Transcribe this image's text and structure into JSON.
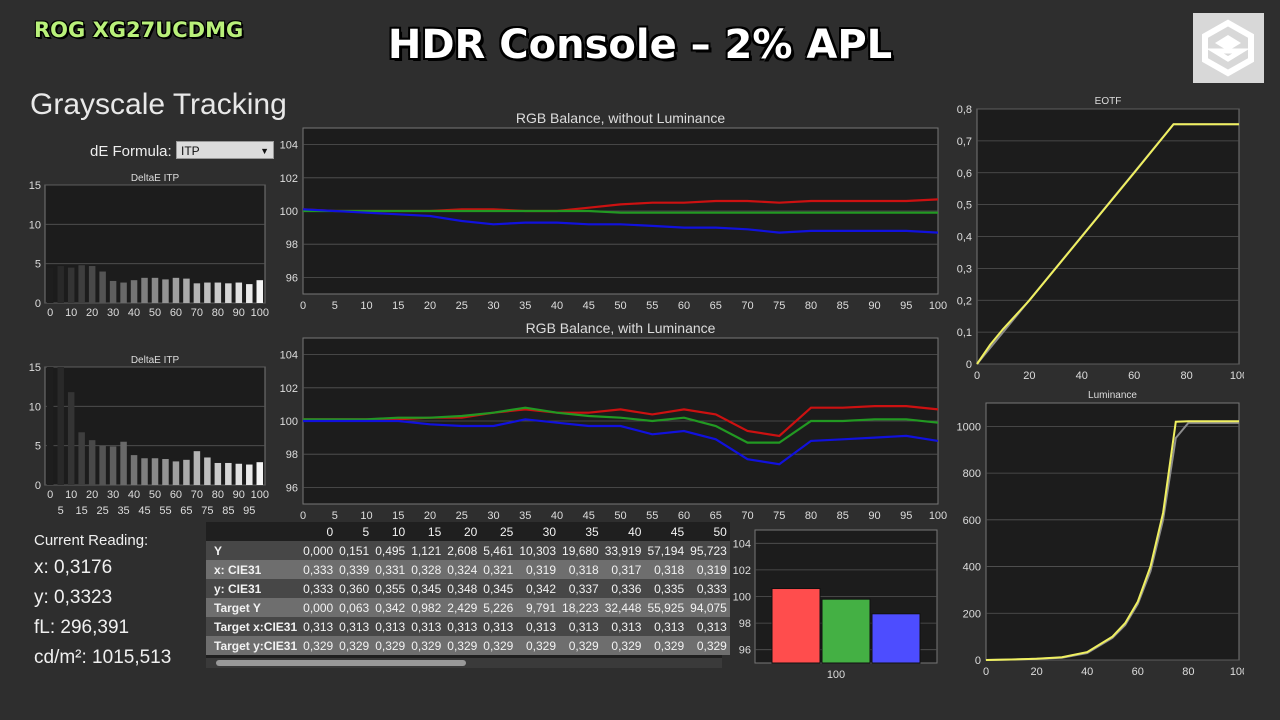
{
  "header": {
    "model": "ROG XG27UCDMG",
    "title": "HDR Console – 2% APL",
    "logo_icon": "cube-logo-icon",
    "section_title": "Grayscale Tracking"
  },
  "formula": {
    "label": "dE Formula:",
    "selected": "ITP"
  },
  "reading": {
    "title": "Current Reading:",
    "x": "x: 0,3176",
    "y": "y: 0,3323",
    "fl": "fL: 296,391",
    "cd": "cd/m²: 1015,513"
  },
  "table": {
    "headers": [
      "0",
      "5",
      "10",
      "15",
      "20",
      "25",
      "30",
      "35",
      "40",
      "45",
      "50"
    ],
    "rows": [
      {
        "label": "Y",
        "values": [
          "0,000",
          "0,151",
          "0,495",
          "1,121",
          "2,608",
          "5,461",
          "10,303",
          "19,680",
          "33,919",
          "57,194",
          "95,723"
        ]
      },
      {
        "label": "x: CIE31",
        "values": [
          "0,333",
          "0,339",
          "0,331",
          "0,328",
          "0,324",
          "0,321",
          "0,319",
          "0,318",
          "0,317",
          "0,318",
          "0,319"
        ]
      },
      {
        "label": "y: CIE31",
        "values": [
          "0,333",
          "0,360",
          "0,355",
          "0,345",
          "0,348",
          "0,345",
          "0,342",
          "0,337",
          "0,336",
          "0,335",
          "0,333"
        ]
      },
      {
        "label": "Target Y",
        "values": [
          "0,000",
          "0,063",
          "0,342",
          "0,982",
          "2,429",
          "5,226",
          "9,791",
          "18,223",
          "32,448",
          "55,925",
          "94,075"
        ]
      },
      {
        "label": "Target x:CIE31",
        "values": [
          "0,313",
          "0,313",
          "0,313",
          "0,313",
          "0,313",
          "0,313",
          "0,313",
          "0,313",
          "0,313",
          "0,313",
          "0,313"
        ]
      },
      {
        "label": "Target y:CIE31",
        "values": [
          "0,329",
          "0,329",
          "0,329",
          "0,329",
          "0,329",
          "0,329",
          "0,329",
          "0,329",
          "0,329",
          "0,329",
          "0,329"
        ]
      }
    ]
  },
  "colors": {
    "red": "#cc1111",
    "green": "#229922",
    "blue": "#1111dd",
    "yellow": "#f0f060",
    "gray": "#8c8c8c"
  },
  "chart_data": [
    {
      "id": "deltaE1",
      "type": "bar",
      "title": "DeltaE ITP",
      "ylim": [
        0,
        15
      ],
      "yticks": [
        0,
        5,
        10,
        15
      ],
      "top_ticks": [
        "0",
        "10",
        "20",
        "30",
        "40",
        "50",
        "60",
        "70",
        "80",
        "90",
        "100"
      ],
      "bottom_ticks": [
        "5",
        "15",
        "25",
        "35",
        "45",
        "55",
        "65",
        "75",
        "85",
        "95"
      ],
      "categories": [
        0,
        5,
        10,
        15,
        20,
        25,
        30,
        35,
        40,
        45,
        50,
        55,
        60,
        65,
        70,
        75,
        80,
        85,
        90,
        95,
        100
      ],
      "values": [
        4.5,
        4.7,
        4.5,
        4.8,
        4.7,
        4.0,
        2.8,
        2.6,
        2.9,
        3.2,
        3.2,
        3.0,
        3.2,
        3.1,
        2.5,
        2.6,
        2.6,
        2.5,
        2.6,
        2.4,
        2.9
      ]
    },
    {
      "id": "deltaE2",
      "type": "bar",
      "title": "DeltaE ITP",
      "ylim": [
        0,
        15
      ],
      "yticks": [
        0,
        5,
        10,
        15
      ],
      "top_ticks": [
        "0",
        "10",
        "20",
        "30",
        "40",
        "50",
        "60",
        "70",
        "80",
        "90",
        "100"
      ],
      "bottom_ticks": [
        "5",
        "15",
        "25",
        "35",
        "45",
        "55",
        "65",
        "75",
        "85",
        "95"
      ],
      "categories": [
        0,
        5,
        10,
        15,
        20,
        25,
        30,
        35,
        40,
        45,
        50,
        55,
        60,
        65,
        70,
        75,
        80,
        85,
        90,
        95,
        100
      ],
      "values": [
        15,
        15,
        11.8,
        6.7,
        5.7,
        5.0,
        4.9,
        5.5,
        3.8,
        3.4,
        3.4,
        3.3,
        3.0,
        3.2,
        4.3,
        3.5,
        2.8,
        2.8,
        2.7,
        2.6,
        2.9
      ]
    },
    {
      "id": "rgb1",
      "type": "line",
      "title": "RGB Balance, without Luminance",
      "ylim": [
        95,
        105
      ],
      "yticks": [
        96,
        98,
        100,
        102,
        104
      ],
      "xlim": [
        0,
        100
      ],
      "x": [
        0,
        5,
        10,
        15,
        20,
        25,
        30,
        35,
        40,
        45,
        50,
        55,
        60,
        65,
        70,
        75,
        80,
        85,
        90,
        95,
        100
      ],
      "series": [
        {
          "color": "red",
          "values": [
            100.1,
            100.0,
            100.0,
            100.0,
            100.0,
            100.1,
            100.1,
            100.0,
            100.0,
            100.2,
            100.4,
            100.5,
            100.5,
            100.6,
            100.6,
            100.5,
            100.6,
            100.6,
            100.6,
            100.6,
            100.7
          ]
        },
        {
          "color": "green",
          "values": [
            100.0,
            100.0,
            100.0,
            100.0,
            100.0,
            100.0,
            100.0,
            100.0,
            100.0,
            100.0,
            99.9,
            99.9,
            99.9,
            99.9,
            99.9,
            99.9,
            99.9,
            99.9,
            99.9,
            99.9,
            99.9
          ]
        },
        {
          "color": "blue",
          "values": [
            100.1,
            100.0,
            99.9,
            99.8,
            99.7,
            99.4,
            99.2,
            99.3,
            99.3,
            99.2,
            99.2,
            99.1,
            99.0,
            99.0,
            98.9,
            98.7,
            98.8,
            98.8,
            98.8,
            98.8,
            98.7
          ]
        }
      ]
    },
    {
      "id": "rgb2",
      "type": "line",
      "title": "RGB Balance, with Luminance",
      "ylim": [
        95,
        105
      ],
      "yticks": [
        96,
        98,
        100,
        102,
        104
      ],
      "xlim": [
        0,
        100
      ],
      "x": [
        0,
        5,
        10,
        15,
        20,
        25,
        30,
        35,
        40,
        45,
        50,
        55,
        60,
        65,
        70,
        75,
        80,
        85,
        90,
        95,
        100
      ],
      "series": [
        {
          "color": "red",
          "values": [
            100.1,
            100.1,
            100.1,
            100.1,
            100.2,
            100.2,
            100.5,
            100.7,
            100.5,
            100.5,
            100.7,
            100.4,
            100.7,
            100.4,
            99.4,
            99.1,
            100.8,
            100.8,
            100.9,
            100.9,
            100.7
          ]
        },
        {
          "color": "green",
          "values": [
            100.1,
            100.1,
            100.1,
            100.2,
            100.2,
            100.3,
            100.5,
            100.8,
            100.5,
            100.3,
            100.2,
            100.0,
            100.2,
            99.7,
            98.7,
            98.7,
            100.0,
            100.0,
            100.1,
            100.1,
            99.9
          ]
        },
        {
          "color": "blue",
          "values": [
            100.0,
            100.0,
            100.0,
            100.0,
            99.8,
            99.7,
            99.7,
            100.1,
            99.9,
            99.7,
            99.7,
            99.2,
            99.4,
            98.9,
            97.7,
            97.4,
            98.8,
            98.9,
            99.0,
            99.1,
            98.8
          ]
        }
      ]
    },
    {
      "id": "rgbbar",
      "type": "bar",
      "title": "",
      "ylim": [
        95,
        105
      ],
      "yticks": [
        96,
        98,
        100,
        102,
        104
      ],
      "category": "100",
      "series": [
        {
          "color": "red",
          "value": 100.6
        },
        {
          "color": "green",
          "value": 99.8
        },
        {
          "color": "blue",
          "value": 98.7
        }
      ]
    },
    {
      "id": "eotf",
      "type": "line",
      "title": "EOTF",
      "ylim": [
        0,
        0.8
      ],
      "xlim": [
        0,
        100
      ],
      "yticks": [
        "0",
        "0,1",
        "0,2",
        "0,3",
        "0,4",
        "0,5",
        "0,6",
        "0,7",
        "0,8"
      ],
      "xticks": [
        "0",
        "20",
        "40",
        "60",
        "80",
        "100"
      ],
      "series": [
        {
          "color": "gray",
          "x": [
            0,
            75,
            77,
            100
          ],
          "values": [
            0,
            0.752,
            0.752,
            0.752
          ]
        },
        {
          "color": "yellow",
          "x": [
            0,
            5,
            10,
            20,
            40,
            60,
            75,
            77,
            100
          ],
          "values": [
            0,
            0.06,
            0.11,
            0.2,
            0.4,
            0.6,
            0.752,
            0.752,
            0.752
          ]
        }
      ]
    },
    {
      "id": "lum",
      "type": "line",
      "title": "Luminance",
      "ylim": [
        0,
        1100
      ],
      "xlim": [
        0,
        100
      ],
      "yticks": [
        0,
        200,
        400,
        600,
        800,
        1000
      ],
      "xticks": [
        "0",
        "20",
        "40",
        "60",
        "80",
        "100"
      ],
      "series": [
        {
          "color": "gray",
          "x": [
            0,
            10,
            20,
            30,
            40,
            50,
            55,
            60,
            65,
            70,
            75,
            80,
            100
          ],
          "values": [
            0,
            2,
            5,
            10,
            30,
            95,
            150,
            240,
            380,
            600,
            950,
            1015,
            1015
          ]
        },
        {
          "color": "yellow",
          "x": [
            0,
            10,
            20,
            30,
            40,
            50,
            55,
            60,
            65,
            70,
            75,
            80,
            100
          ],
          "values": [
            0,
            2,
            5,
            12,
            34,
            100,
            158,
            250,
            400,
            630,
            1020,
            1022,
            1022
          ]
        }
      ]
    }
  ]
}
